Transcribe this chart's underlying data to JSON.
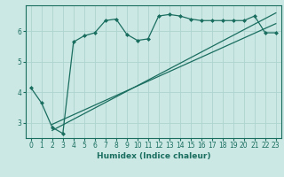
{
  "xlabel": "Humidex (Indice chaleur)",
  "background_color": "#cce8e4",
  "grid_color": "#aed4cf",
  "line_color": "#1a6e60",
  "xlim": [
    -0.5,
    23.5
  ],
  "ylim": [
    2.5,
    6.85
  ],
  "yticks": [
    3,
    4,
    5,
    6
  ],
  "xticks": [
    0,
    1,
    2,
    3,
    4,
    5,
    6,
    7,
    8,
    9,
    10,
    11,
    12,
    13,
    14,
    15,
    16,
    17,
    18,
    19,
    20,
    21,
    22,
    23
  ],
  "curve1_x": [
    0,
    1,
    2,
    3,
    4,
    5,
    6,
    7,
    8,
    9,
    10,
    11,
    12,
    13,
    14,
    15,
    16,
    17,
    18,
    19,
    20,
    21,
    22,
    23
  ],
  "curve1_y": [
    4.15,
    3.65,
    2.85,
    2.65,
    5.65,
    5.85,
    5.95,
    6.35,
    6.4,
    5.9,
    5.7,
    5.75,
    6.5,
    6.55,
    6.5,
    6.4,
    6.35,
    6.35,
    6.35,
    6.35,
    6.35,
    6.5,
    5.95,
    5.95
  ],
  "curve2_x": [
    2,
    23
  ],
  "curve2_y": [
    2.75,
    6.6
  ],
  "curve3_x": [
    2,
    23
  ],
  "curve3_y": [
    2.95,
    6.25
  ]
}
